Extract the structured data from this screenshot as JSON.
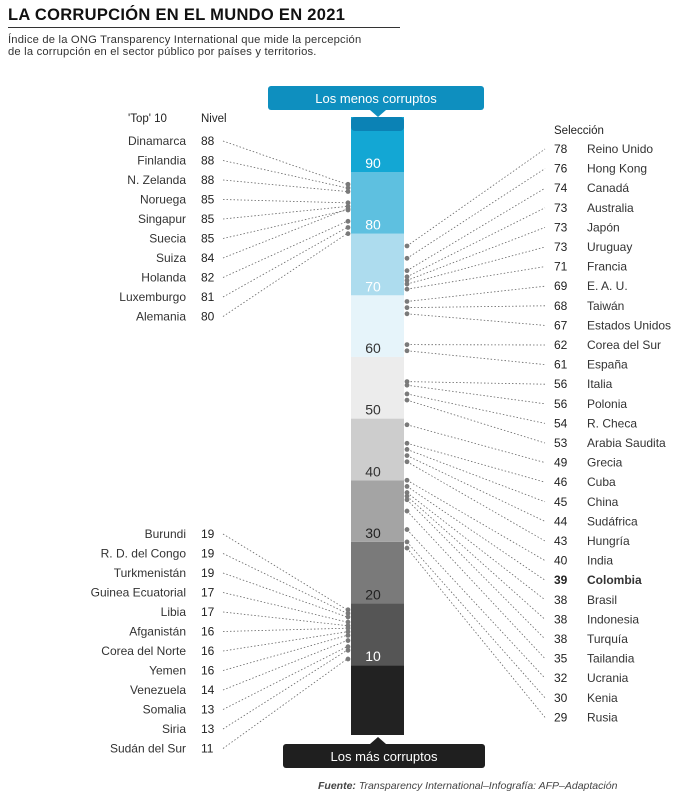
{
  "title": "LA CORRUPCIÓN EN EL MUNDO EN 2021",
  "subtitle": [
    "Índice de la ONG Transparency International que mide la percepción",
    "de la corrupción en el sector público por países y territorios."
  ],
  "top_banner": "Los menos corruptos",
  "bottom_banner": "Los más corruptos",
  "left_header": {
    "top": "'Top' 10",
    "level": "Nivel"
  },
  "right_header": "Selección",
  "source_label": "Fuente:",
  "source_text": " Transparency International–Infografía: AFP–Adaptación",
  "colors": {
    "banner": "#0e8fbf",
    "banner_dark": "#1f1f1f",
    "scale_bands": [
      "#222222",
      "#555555",
      "#7a7a7a",
      "#a4a4a4",
      "#cdcdcd",
      "#ececec",
      "#e6f4fa",
      "#addcee",
      "#5ec0e0",
      "#13a7d4",
      "#0b82b5"
    ]
  },
  "chart_data": {
    "type": "scale",
    "scale_min": 0,
    "scale_max": 100,
    "scale_ticks": [
      10,
      20,
      30,
      40,
      50,
      60,
      70,
      80,
      90
    ],
    "top10": [
      {
        "name": "Dinamarca",
        "value": 88
      },
      {
        "name": "Finlandia",
        "value": 88
      },
      {
        "name": "N. Zelanda",
        "value": 88
      },
      {
        "name": "Noruega",
        "value": 85
      },
      {
        "name": "Singapur",
        "value": 85
      },
      {
        "name": "Suecia",
        "value": 85
      },
      {
        "name": "Suiza",
        "value": 84
      },
      {
        "name": "Holanda",
        "value": 82
      },
      {
        "name": "Luxemburgo",
        "value": 81
      },
      {
        "name": "Alemania",
        "value": 80
      }
    ],
    "bottom": [
      {
        "name": "Burundi",
        "value": 19
      },
      {
        "name": "R. D. del Congo",
        "value": 19
      },
      {
        "name": "Turkmenistán",
        "value": 19
      },
      {
        "name": "Guinea Ecuatorial",
        "value": 17
      },
      {
        "name": "Libia",
        "value": 17
      },
      {
        "name": "Afganistán",
        "value": 16
      },
      {
        "name": "Corea del Norte",
        "value": 16
      },
      {
        "name": "Yemen",
        "value": 16
      },
      {
        "name": "Venezuela",
        "value": 14
      },
      {
        "name": "Somalia",
        "value": 13
      },
      {
        "name": "Siria",
        "value": 13
      },
      {
        "name": "Sudán del Sur",
        "value": 11
      }
    ],
    "selection": [
      {
        "name": "Reino Unido",
        "value": 78
      },
      {
        "name": "Hong Kong",
        "value": 76
      },
      {
        "name": "Canadá",
        "value": 74
      },
      {
        "name": "Australia",
        "value": 73
      },
      {
        "name": "Japón",
        "value": 73
      },
      {
        "name": "Uruguay",
        "value": 73
      },
      {
        "name": "Francia",
        "value": 71
      },
      {
        "name": "E. A. U.",
        "value": 69
      },
      {
        "name": "Taiwán",
        "value": 68
      },
      {
        "name": "Estados Unidos",
        "value": 67
      },
      {
        "name": "Corea del Sur",
        "value": 62
      },
      {
        "name": "España",
        "value": 61
      },
      {
        "name": "Italia",
        "value": 56
      },
      {
        "name": "Polonia",
        "value": 56
      },
      {
        "name": "R. Checa",
        "value": 54
      },
      {
        "name": "Arabia Saudita",
        "value": 53
      },
      {
        "name": "Grecia",
        "value": 49
      },
      {
        "name": "Cuba",
        "value": 46
      },
      {
        "name": "China",
        "value": 45
      },
      {
        "name": "Sudáfrica",
        "value": 44
      },
      {
        "name": "Hungría",
        "value": 43
      },
      {
        "name": "India",
        "value": 40
      },
      {
        "name": "Colombia",
        "value": 39,
        "highlight": true
      },
      {
        "name": "Brasil",
        "value": 38
      },
      {
        "name": "Indonesia",
        "value": 38
      },
      {
        "name": "Turquía",
        "value": 38
      },
      {
        "name": "Tailandia",
        "value": 35
      },
      {
        "name": "Ucrania",
        "value": 32
      },
      {
        "name": "Kenia",
        "value": 30
      },
      {
        "name": "Rusia",
        "value": 29
      }
    ]
  }
}
